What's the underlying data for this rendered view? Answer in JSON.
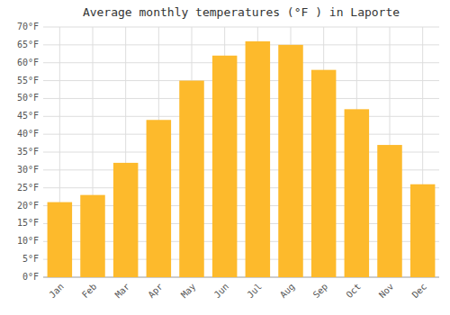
{
  "chart_data": {
    "type": "bar",
    "title": "Average monthly temperatures (°F ) in Laporte",
    "categories": [
      "Jan",
      "Feb",
      "Mar",
      "Apr",
      "May",
      "Jun",
      "Jul",
      "Aug",
      "Sep",
      "Oct",
      "Nov",
      "Dec"
    ],
    "values": [
      21,
      23,
      32,
      44,
      55,
      62,
      66,
      65,
      58,
      47,
      37,
      26
    ],
    "color": "#FDBA2C",
    "ylim": [
      0,
      70
    ],
    "yticks": [
      {
        "value": 0,
        "label": "0°F"
      },
      {
        "value": 5,
        "label": "5°F"
      },
      {
        "value": 10,
        "label": "10°F"
      },
      {
        "value": 15,
        "label": "15°F"
      },
      {
        "value": 20,
        "label": "20°F"
      },
      {
        "value": 25,
        "label": "25°F"
      },
      {
        "value": 30,
        "label": "30°F"
      },
      {
        "value": 35,
        "label": "35°F"
      },
      {
        "value": 40,
        "label": "40°F"
      },
      {
        "value": 45,
        "label": "45°F"
      },
      {
        "value": 50,
        "label": "50°F"
      },
      {
        "value": 55,
        "label": "55°F"
      },
      {
        "value": 60,
        "label": "60°F"
      },
      {
        "value": 65,
        "label": "65°F"
      },
      {
        "value": 70,
        "label": "70°F"
      }
    ],
    "grid": true
  }
}
